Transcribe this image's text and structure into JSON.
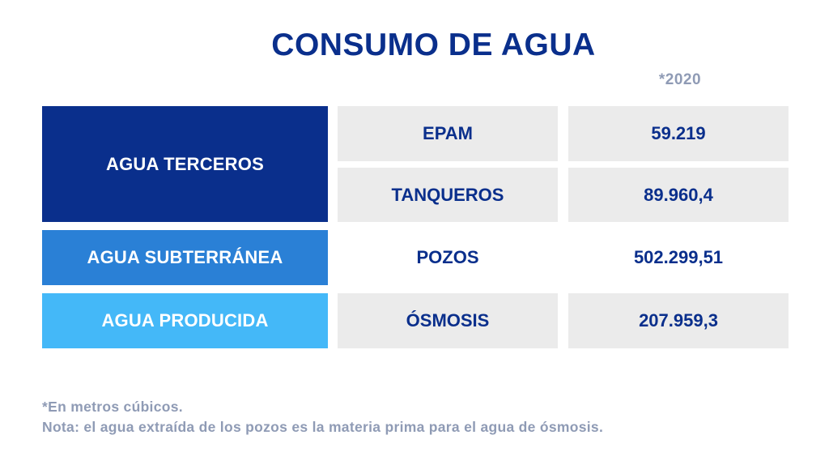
{
  "chart_data": {
    "type": "table",
    "title": "CONSUMO DE AGUA",
    "year_label": "*2020",
    "categories": [
      "AGUA TERCEROS",
      "AGUA SUBTERRÁNEA",
      "AGUA PRODUCIDA"
    ],
    "rows": [
      {
        "category": "AGUA TERCEROS",
        "source": "EPAM",
        "value": "59.219"
      },
      {
        "category": "AGUA TERCEROS",
        "source": "TANQUEROS",
        "value": "89.960,4"
      },
      {
        "category": "AGUA SUBTERRÁNEA",
        "source": "POZOS",
        "value": "502.299,51"
      },
      {
        "category": "AGUA PRODUCIDA",
        "source": "ÓSMOSIS",
        "value": "207.959,3"
      }
    ],
    "notes": [
      "*En metros cúbicos.",
      "Nota: el agua extraída de los pozos es la materia prima para el agua de ósmosis."
    ]
  },
  "colors": {
    "title": "#0a2f8c",
    "agua_terceros": "#0a2f8c",
    "agua_subterranea": "#2a80d6",
    "agua_producida": "#44b8f8",
    "cell_background": "#ebebeb",
    "note_text": "#8f9bb5"
  }
}
